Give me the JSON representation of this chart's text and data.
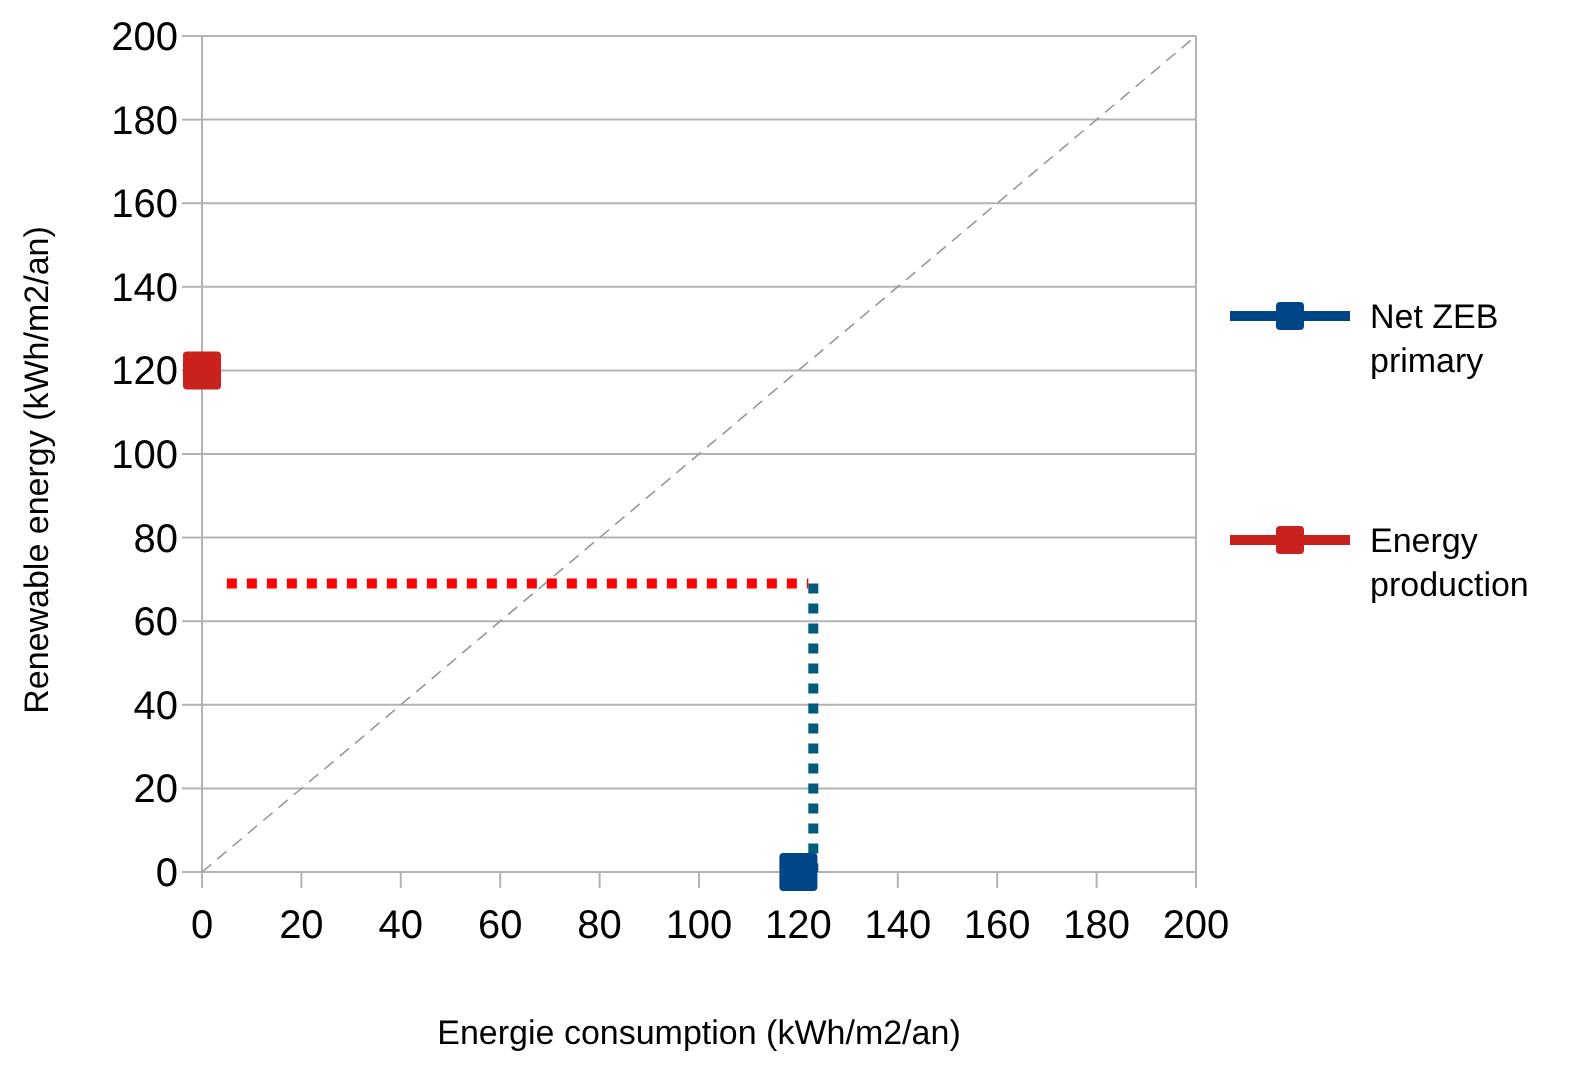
{
  "chart_data": {
    "type": "scatter",
    "xlabel": "Energie consumption (kWh/m2/an)",
    "ylabel": "Renewable energy (kWh/m2/an)",
    "xlim": [
      0,
      200
    ],
    "ylim": [
      0,
      200
    ],
    "xticks": [
      0,
      20,
      40,
      60,
      80,
      100,
      120,
      140,
      160,
      180,
      200
    ],
    "yticks": [
      0,
      20,
      40,
      60,
      80,
      100,
      120,
      140,
      160,
      180,
      200
    ],
    "grid": "y",
    "legend": "right",
    "series": [
      {
        "name": "Net ZEB primary",
        "color": "#004586",
        "marker": "square",
        "x": [
          120
        ],
        "values": [
          0
        ]
      },
      {
        "name": "Energy production",
        "color": "#c9211e",
        "marker": "square",
        "x": [
          0
        ],
        "values": [
          120
        ]
      },
      {
        "type": "line",
        "color": "#999999",
        "line_style": "dashed",
        "marker": "none",
        "x": [
          0,
          200
        ],
        "values": [
          0,
          200
        ]
      },
      {
        "type": "line",
        "color": "#ff0000",
        "line_style": "dotted",
        "marker": "none",
        "x": [
          5,
          122
        ],
        "values": [
          69,
          69
        ]
      },
      {
        "type": "line",
        "color": "#005c7a",
        "line_style": "dotted",
        "marker": "none",
        "x": [
          123,
          123
        ],
        "values": [
          69,
          0
        ]
      }
    ]
  }
}
